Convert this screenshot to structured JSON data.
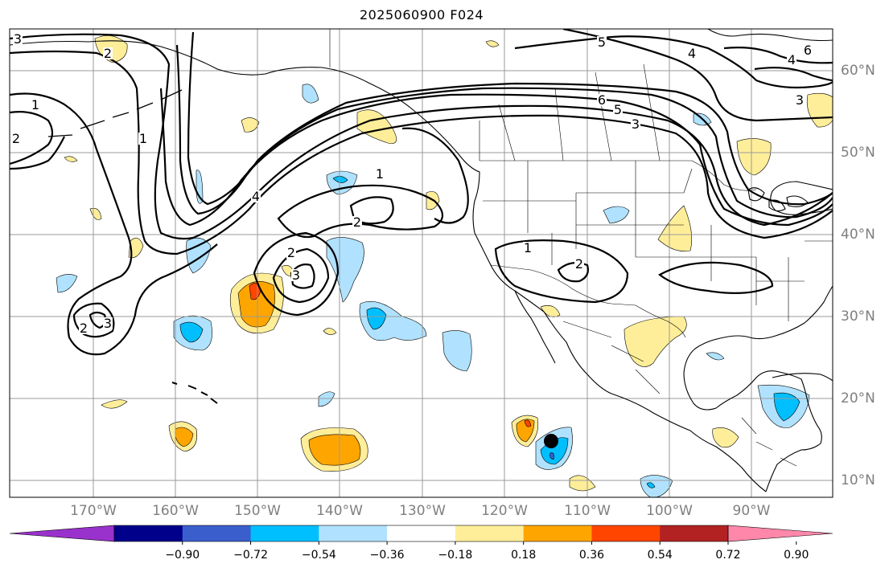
{
  "title": "2025060900 F024",
  "lon_labels": [
    "170°W",
    "160°W",
    "150°W",
    "140°W",
    "130°W",
    "120°W",
    "110°W",
    "100°W",
    "90°W"
  ],
  "lat_labels": [
    "60°N",
    "50°N",
    "40°N",
    "30°N",
    "20°N",
    "10°N"
  ],
  "colorbar": {
    "tick_labels": [
      "−0.90",
      "−0.72",
      "−0.54",
      "−0.36",
      "−0.18",
      "0.18",
      "0.36",
      "0.54",
      "0.72",
      "0.90"
    ],
    "colors": [
      "#9932cc",
      "#00008b",
      "#3a5fcd",
      "#00bfff",
      "#b0e2ff",
      "#ffffff",
      "#ffee99",
      "#ffa500",
      "#ff4500",
      "#b22222",
      "#ff88aa"
    ]
  },
  "contour_labels": [
    "3",
    "2",
    "1",
    "2",
    "1",
    "4",
    "1",
    "2",
    "2",
    "3",
    "2",
    "3",
    "6",
    "5",
    "3",
    "5",
    "4",
    "4",
    "6",
    "3",
    "1",
    "2"
  ],
  "marker": {
    "label": "storm-center"
  }
}
